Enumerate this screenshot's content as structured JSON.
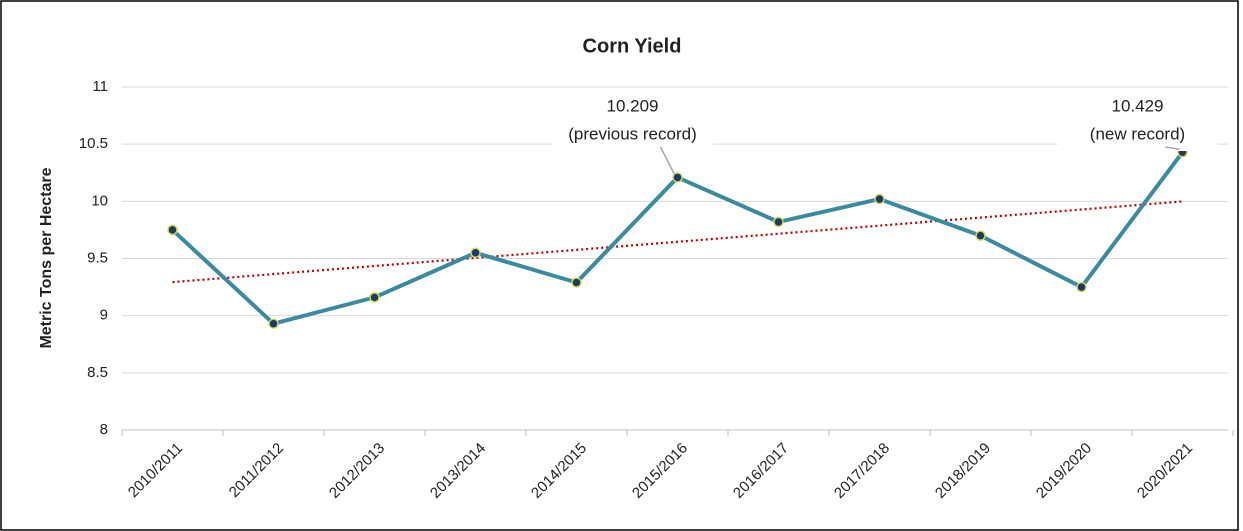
{
  "chart_data": {
    "type": "line",
    "title": "Corn Yield",
    "y_label": "Metric Tons per Hectare",
    "categories": [
      "2010/2011",
      "2011/2012",
      "2012/2013",
      "2013/2014",
      "2014/2015",
      "2015/2016",
      "2016/2017",
      "2017/2018",
      "2018/2019",
      "2019/2020",
      "2020/2021"
    ],
    "series": [
      {
        "color": "#3b8ba0",
        "marker_fill": "#1f3864",
        "marker_stroke": "#c9dc55",
        "values": [
          9.75,
          8.93,
          9.16,
          9.55,
          9.29,
          10.209,
          9.82,
          10.02,
          9.7,
          9.25,
          10.429
        ]
      }
    ],
    "trendline": {
      "kind": "linear",
      "color": "#c00000"
    },
    "ylim": [
      8,
      11
    ],
    "yticks": [
      8,
      8.5,
      9,
      9.5,
      10,
      10.5,
      11
    ],
    "grid": true,
    "annotations": [
      {
        "category": "2015/2016",
        "lines": [
          "10.209",
          "(previous record)"
        ]
      },
      {
        "category": "2020/2021",
        "lines": [
          "10.429",
          "(new record)"
        ]
      }
    ]
  }
}
